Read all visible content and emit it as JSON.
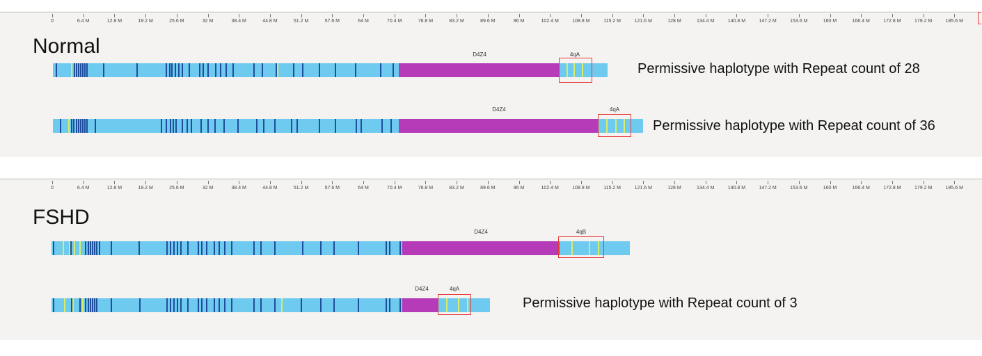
{
  "axis": {
    "labels": [
      "0",
      "6.4 M",
      "12.8 M",
      "19.2 M",
      "25.6 M",
      "32 M",
      "38.4 M",
      "44.8 M",
      "51.2 M",
      "57.6 M",
      "64 M",
      "70.4 M",
      "76.8 M",
      "83.2 M",
      "89.6 M",
      "96 M",
      "102.4 M",
      "108.8 M",
      "115.2 M",
      "121.6 M",
      "128 M",
      "134.4 M",
      "140.8 M",
      "147.2 M",
      "153.6 M",
      "160 M",
      "166.4 M",
      "172.8 M",
      "179.2 M",
      "185.6 M"
    ]
  },
  "colors": {
    "backbone": "#6fcaef",
    "repeat": "#b53bb8",
    "dark_band": "#1f4e9c",
    "light_band": "#d8ec6a",
    "highlight_box": "#e53935",
    "panel_bg": "#f4f3f2"
  },
  "groups": [
    {
      "name": "Normal",
      "tracks": [
        {
          "repeat_label": "D4Z4",
          "haplotype_label": "4qA",
          "description": "Permissive haplotype with Repeat count of 28"
        },
        {
          "repeat_label": "D4Z4",
          "haplotype_label": "4qA",
          "description": "Permissive haplotype with Repeat count of 36"
        }
      ]
    },
    {
      "name": "FSHD",
      "tracks": [
        {
          "repeat_label": "D4Z4",
          "haplotype_label": "4qB",
          "description": ""
        },
        {
          "repeat_label": "D4Z4",
          "haplotype_label": "4qA",
          "description": "Permissive haplotype with Repeat count of 3"
        }
      ]
    }
  ]
}
